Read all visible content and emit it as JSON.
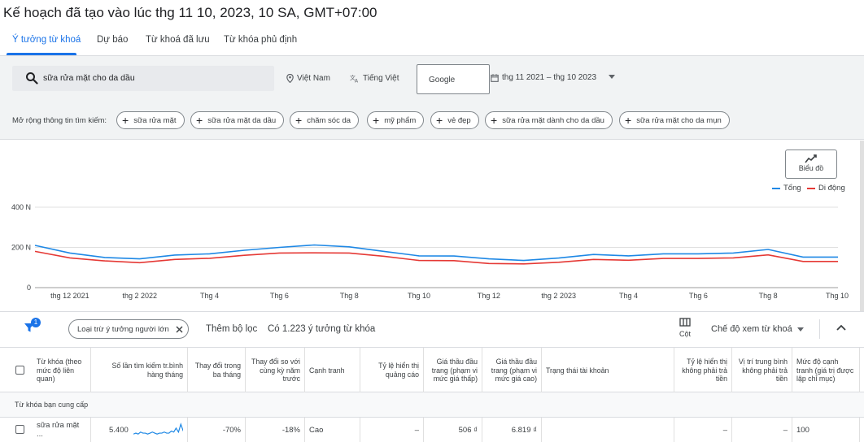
{
  "page": {
    "title": "Kế hoạch đã tạo vào lúc thg 11 10, 2023, 10 SA, GMT+07:00"
  },
  "tabs": [
    {
      "label": "Ý tưởng từ khoá"
    },
    {
      "label": "Dự báo"
    },
    {
      "label": "Từ khoá đã lưu"
    },
    {
      "label": "Từ khóa phủ định"
    }
  ],
  "search": {
    "value": "sữa rửa mặt cho da dầu",
    "location": "Việt Nam",
    "language": "Tiếng Việt",
    "network": "Google",
    "date_range": "thg 11 2021 – thg 10 2023"
  },
  "expand": {
    "label": "Mở rộng thông tin tìm kiếm:",
    "chips": [
      "sữa rửa mặt",
      "sữa rửa mặt da dầu",
      "chăm sóc da",
      "mỹ phẩm",
      "vẻ đẹp",
      "sữa rửa mặt dành cho da dầu",
      "sữa rửa mặt cho da mụn"
    ]
  },
  "chart_toolbar": {
    "button_label": "Biểu đồ"
  },
  "chart_data": {
    "type": "line",
    "ylabels": [
      "400 N",
      "200 N",
      "0"
    ],
    "ylim": [
      0,
      400
    ],
    "yticks": [
      0,
      200,
      400
    ],
    "xlabels": [
      "thg 12 2021",
      "thg 2 2022",
      "Thg 4",
      "Thg 6",
      "Thg 8",
      "Thg 10",
      "Thg 12",
      "thg 2 2023",
      "Thg 4",
      "Thg 6",
      "Thg 8",
      "Thg 10"
    ],
    "legend_position": "top-right",
    "grid": true,
    "series": [
      {
        "name": "Tổng",
        "color": "#1e88e5",
        "values": [
          210,
          172,
          150,
          143,
          162,
          168,
          186,
          200,
          212,
          203,
          180,
          158,
          157,
          143,
          135,
          147,
          165,
          158,
          168,
          168,
          172,
          190,
          152,
          152
        ]
      },
      {
        "name": "Di động",
        "color": "#e53935",
        "values": [
          180,
          148,
          133,
          124,
          140,
          146,
          161,
          172,
          173,
          172,
          156,
          135,
          134,
          120,
          118,
          126,
          140,
          136,
          145,
          145,
          148,
          163,
          130,
          130
        ]
      }
    ]
  },
  "table_toolbar": {
    "filter_badge": "1",
    "filter_chip": "Loại trừ ý tưởng người lớn",
    "add_filter": "Thêm bộ lọc",
    "idea_count": "Có 1.223 ý tưởng từ khóa",
    "columns_label": "Cột",
    "view_mode": "Chế độ xem từ khoá"
  },
  "table": {
    "headers": [
      "Từ khóa (theo mức độ liên quan)",
      "Số lần tìm kiếm tr.bình hàng tháng",
      "Thay đổi trong ba tháng",
      "Thay đổi so với cùng kỳ năm trước",
      "Cạnh tranh",
      "Tỷ lệ hiển thị quảng cáo",
      "Giá thầu đầu trang (phạm vi mức giá thấp)",
      "Giá thầu đầu trang (phạm vi mức giá cao)",
      "Trạng thái tài khoản",
      "Tỷ lệ hiển thị không phải trả tiền",
      "Vị trí trung bình không phải trả tiền",
      "Mức độ cạnh tranh (giá trị được lập chỉ mục)"
    ],
    "section_label": "Từ khóa bạn cung cấp",
    "rows": [
      {
        "keyword": "sữa rửa mặt ...",
        "avg_searches": "5.400",
        "three_month_change": "-70%",
        "yoy_change": "-18%",
        "competition": "Cao",
        "impression_share": "–",
        "bid_low": "506 ₫",
        "bid_high": "6.819 ₫",
        "account_status": "",
        "organic_share": "–",
        "organic_position": "–",
        "competition_index": "100",
        "sparkline": [
          3,
          4,
          3,
          5,
          4,
          4,
          3,
          4,
          5,
          4,
          3,
          4,
          4,
          5,
          4,
          4,
          6,
          5,
          9,
          5,
          13,
          6
        ]
      }
    ]
  }
}
